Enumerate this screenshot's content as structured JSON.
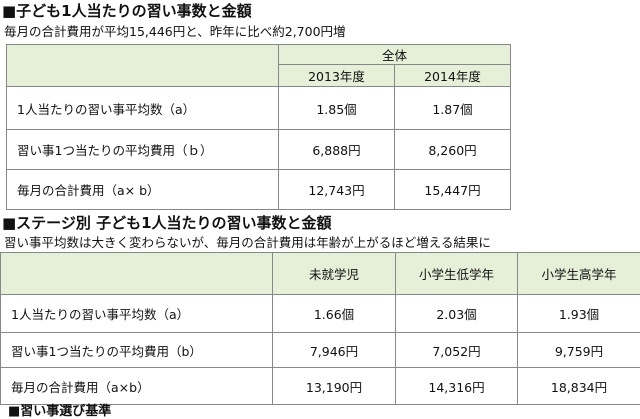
{
  "section1": {
    "heading": "■子ども1人当たりの習い事数と金額",
    "subtitle": "毎月の合計費用が平均15,446円と、昨年に比べ約2,700円増",
    "group_header": "全体",
    "columns": [
      "2013年度",
      "2014年度"
    ],
    "rows": [
      {
        "label": "1人当たりの習い事平均数（a）",
        "values": [
          "1.85個",
          "1.87個"
        ]
      },
      {
        "label": "習い事1つ当たりの平均費用（ｂ）",
        "values": [
          "6,888円",
          "8,260円"
        ]
      },
      {
        "label": "毎月の合計費用（a× b）",
        "values": [
          "12,743円",
          "15,447円"
        ]
      }
    ]
  },
  "section2": {
    "heading": "■ステージ別 子ども1人当たりの習い事数と金額",
    "subtitle": "習い事平均数は大きく変わらないが、毎月の合計費用は年齢が上がるほど増える結果に",
    "columns": [
      "未就学児",
      "小学生低学年",
      "小学生高学年"
    ],
    "rows": [
      {
        "label": "1人当たりの習い事平均数（a）",
        "values": [
          "1.66個",
          "2.03個",
          "1.93個"
        ]
      },
      {
        "label": "習い事1つ当たりの平均費用（b）",
        "values": [
          "7,946円",
          "7,052円",
          "9,759円"
        ]
      },
      {
        "label": "毎月の合計費用（a×b）",
        "values": [
          "13,190円",
          "14,316円",
          "18,834円"
        ]
      }
    ]
  },
  "footer": {
    "cut_heading": "■習い事選び基準"
  }
}
